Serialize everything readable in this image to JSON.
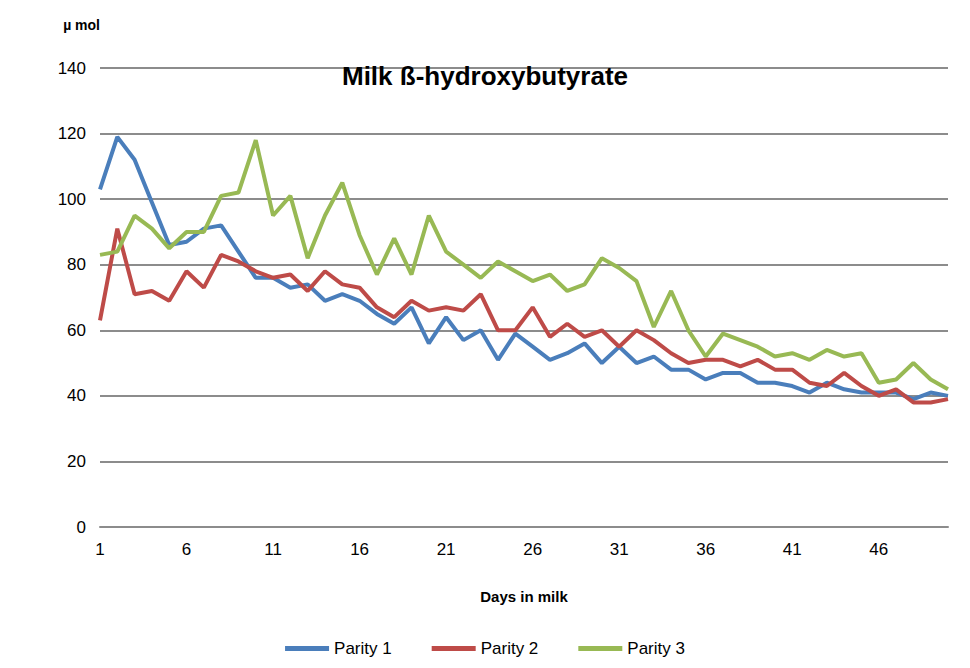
{
  "chart_data": {
    "type": "line",
    "title": "Milk ß-hydroxybutyrate",
    "y_label": "µ mol",
    "x_label": "Days in milk",
    "categories": [
      1,
      null,
      null,
      null,
      null,
      6,
      null,
      null,
      null,
      null,
      11,
      null,
      null,
      null,
      null,
      16,
      null,
      null,
      null,
      null,
      21,
      null,
      null,
      null,
      null,
      26,
      null,
      null,
      null,
      null,
      31,
      null,
      null,
      null,
      null,
      36,
      null,
      null,
      null,
      null,
      41,
      null,
      null,
      null,
      null,
      46,
      null,
      null,
      null,
      null
    ],
    "series": [
      {
        "name": "Parity 1",
        "color": "#4a7ebb",
        "values": [
          103,
          119,
          112,
          99,
          86,
          87,
          91,
          92,
          84,
          76,
          76,
          73,
          74,
          69,
          71,
          69,
          65,
          62,
          67,
          56,
          64,
          57,
          60,
          51,
          59,
          55,
          51,
          53,
          56,
          50,
          55,
          50,
          52,
          48,
          48,
          45,
          47,
          47,
          44,
          44,
          43,
          41,
          44,
          42,
          41,
          41,
          41,
          39,
          41,
          40
        ]
      },
      {
        "name": "Parity 2",
        "color": "#be4b48",
        "values": [
          63,
          91,
          71,
          72,
          69,
          78,
          73,
          83,
          81,
          78,
          76,
          77,
          72,
          78,
          74,
          73,
          67,
          64,
          69,
          66,
          67,
          66,
          71,
          60,
          60,
          67,
          58,
          62,
          58,
          60,
          55,
          60,
          57,
          53,
          50,
          51,
          51,
          49,
          51,
          48,
          48,
          44,
          43,
          47,
          43,
          40,
          42,
          38,
          38,
          39
        ]
      },
      {
        "name": "Parity 3",
        "color": "#98b954",
        "values": [
          83,
          84,
          95,
          91,
          85,
          90,
          90,
          101,
          102,
          118,
          95,
          101,
          82,
          95,
          105,
          89,
          77,
          88,
          77,
          95,
          84,
          80,
          76,
          81,
          78,
          75,
          77,
          72,
          74,
          82,
          79,
          75,
          61,
          72,
          60,
          52,
          59,
          57,
          55,
          52,
          53,
          51,
          54,
          52,
          53,
          44,
          45,
          50,
          45,
          42
        ]
      }
    ],
    "ylim": [
      0,
      140
    ],
    "yticks": [
      0,
      20,
      40,
      60,
      80,
      100,
      120,
      140
    ],
    "grid": true,
    "legend": "bottom"
  }
}
